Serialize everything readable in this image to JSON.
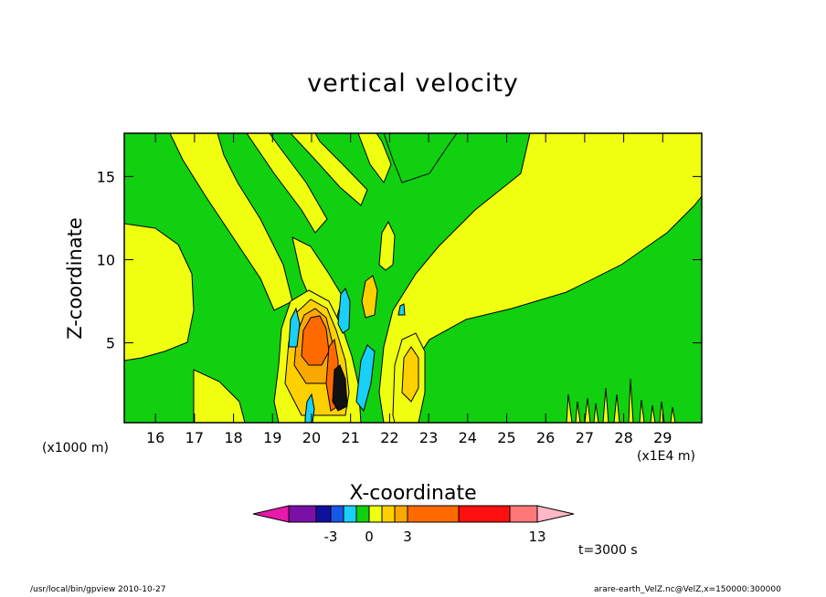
{
  "chart_data": {
    "type": "heatmap",
    "title": "vertical velocity",
    "xlabel": "X-coordinate",
    "ylabel": "Z-coordinate",
    "x_unit_primary": "(x1000 m)",
    "x_unit_secondary": "(x1E4 m)",
    "x_ticks": [
      "16",
      "17",
      "18",
      "19",
      "20",
      "21",
      "22",
      "23",
      "24",
      "25",
      "26",
      "27",
      "28",
      "29"
    ],
    "x_tick_values": [
      16,
      17,
      18,
      19,
      20,
      21,
      22,
      23,
      24,
      25,
      26,
      27,
      28,
      29
    ],
    "xlim": [
      15.2,
      30.0
    ],
    "y_ticks": [
      "5",
      "10",
      "15"
    ],
    "y_tick_values": [
      5,
      10,
      15
    ],
    "ylim": [
      0.2,
      17.6
    ],
    "time_label": "t=3000 s",
    "colorbar": {
      "labels": [
        "-3",
        "0",
        "3",
        "13"
      ],
      "label_values": [
        -3,
        0,
        3,
        13
      ],
      "levels": [
        -6,
        -4,
        -3,
        -2,
        -1,
        0,
        1,
        2,
        3,
        7,
        10,
        13
      ],
      "colors": [
        "#e818a8",
        "#7a10a8",
        "#1010a0",
        "#1858e8",
        "#18d0f8",
        "#10d010",
        "#f0ff10",
        "#ffd000",
        "#f8a800",
        "#ff6a00",
        "#ff1010",
        "#ff7878",
        "#ffb8c8"
      ]
    },
    "grid": false
  },
  "footer": {
    "left": "/usr/local/bin/gpview   2010-10-27",
    "right": "arare-earth_VelZ.nc@VelZ,x=150000:300000"
  }
}
